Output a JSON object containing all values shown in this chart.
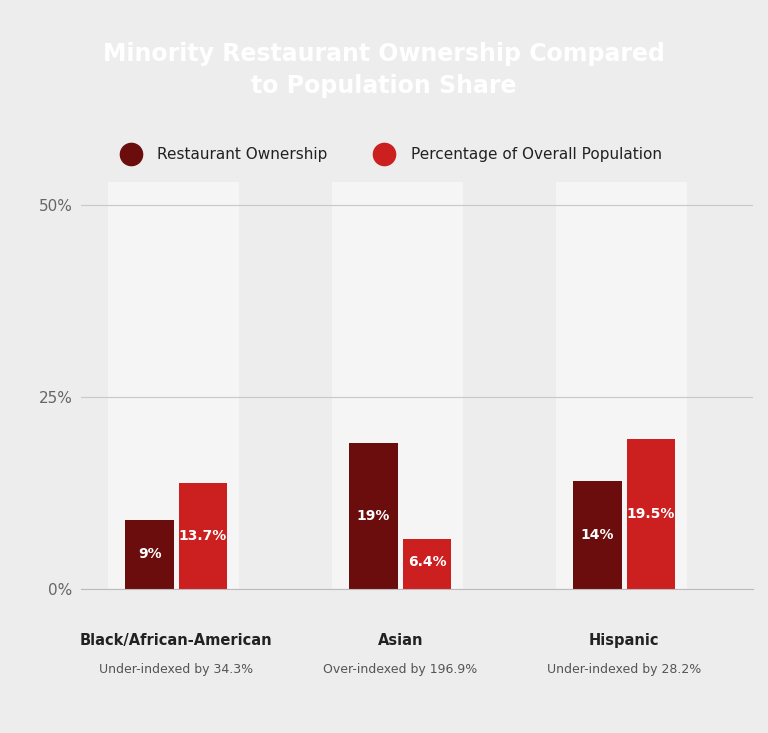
{
  "title": "Minority Restaurant Ownership Compared\nto Population Share",
  "title_bg_color": "#87654A",
  "title_top_stripe_color": "#B22020",
  "background_color": "#EDEDED",
  "plot_area_color": "#EDEDED",
  "white_col_color": "#F5F5F5",
  "categories": [
    "Black/African-American",
    "Asian",
    "Hispanic"
  ],
  "subtitles": [
    "Under-indexed by 34.3%",
    "Over-indexed by 196.9%",
    "Under-indexed by 28.2%"
  ],
  "ownership_values": [
    9,
    19,
    14
  ],
  "population_values": [
    13.7,
    6.4,
    19.5
  ],
  "ownership_labels": [
    "9%",
    "19%",
    "14%"
  ],
  "population_labels": [
    "13.7%",
    "6.4%",
    "19.5%"
  ],
  "ownership_color": "#6B0D0D",
  "population_color": "#CC1F1F",
  "legend_ownership_color": "#6B0D0D",
  "legend_population_color": "#CC1F1F",
  "legend_label_ownership": "Restaurant Ownership",
  "legend_label_population": "Percentage of Overall Population",
  "yticks": [
    0,
    25,
    50
  ],
  "ytick_labels": [
    "0%",
    "25%",
    "50%"
  ],
  "ylim": [
    0,
    53
  ],
  "bar_width": 0.28,
  "group_positions": [
    0.5,
    1.8,
    3.1
  ],
  "value_fontsize": 10,
  "category_fontsize": 10.5,
  "subtitle_fontsize": 9,
  "legend_fontsize": 11,
  "title_fontsize": 17
}
